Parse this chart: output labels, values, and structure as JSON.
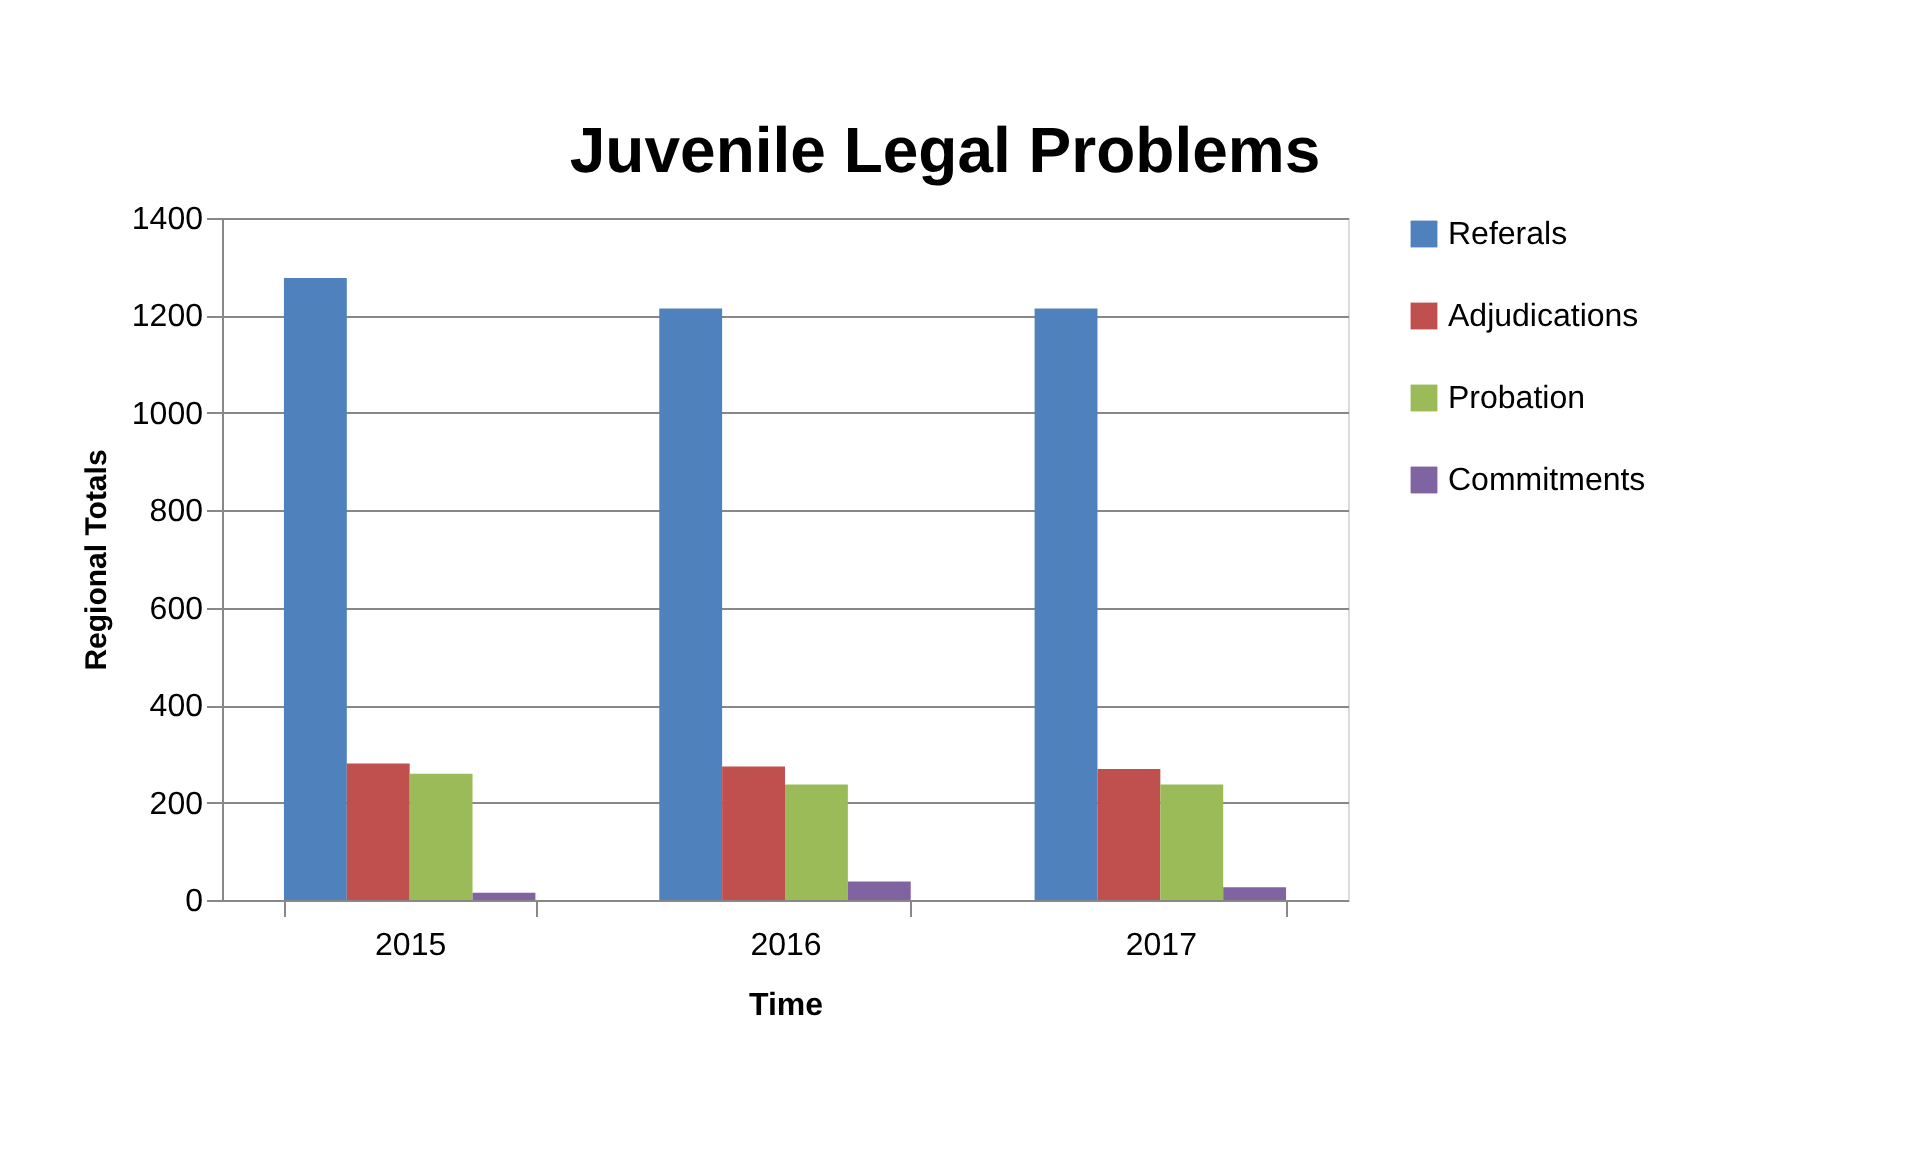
{
  "chart_data": {
    "type": "bar",
    "title": "Juvenile Legal Problems",
    "xlabel": "Time",
    "ylabel": "Regional Totals",
    "categories": [
      "2015",
      "2016",
      "2017"
    ],
    "series": [
      {
        "name": "Referals",
        "color": "#4f81bd",
        "values": [
          1277,
          1214,
          1214
        ]
      },
      {
        "name": "Adjudications",
        "color": "#c0504d",
        "values": [
          280,
          274,
          269
        ]
      },
      {
        "name": "Probation",
        "color": "#9bbb59",
        "values": [
          259,
          237,
          237
        ]
      },
      {
        "name": "Commitments",
        "color": "#8064a2",
        "values": [
          15,
          38,
          26
        ]
      }
    ],
    "ylim": [
      0,
      1400
    ],
    "yticks": [
      0,
      200,
      400,
      600,
      800,
      1000,
      1200,
      1400
    ],
    "grid": "y",
    "legend": "right"
  }
}
